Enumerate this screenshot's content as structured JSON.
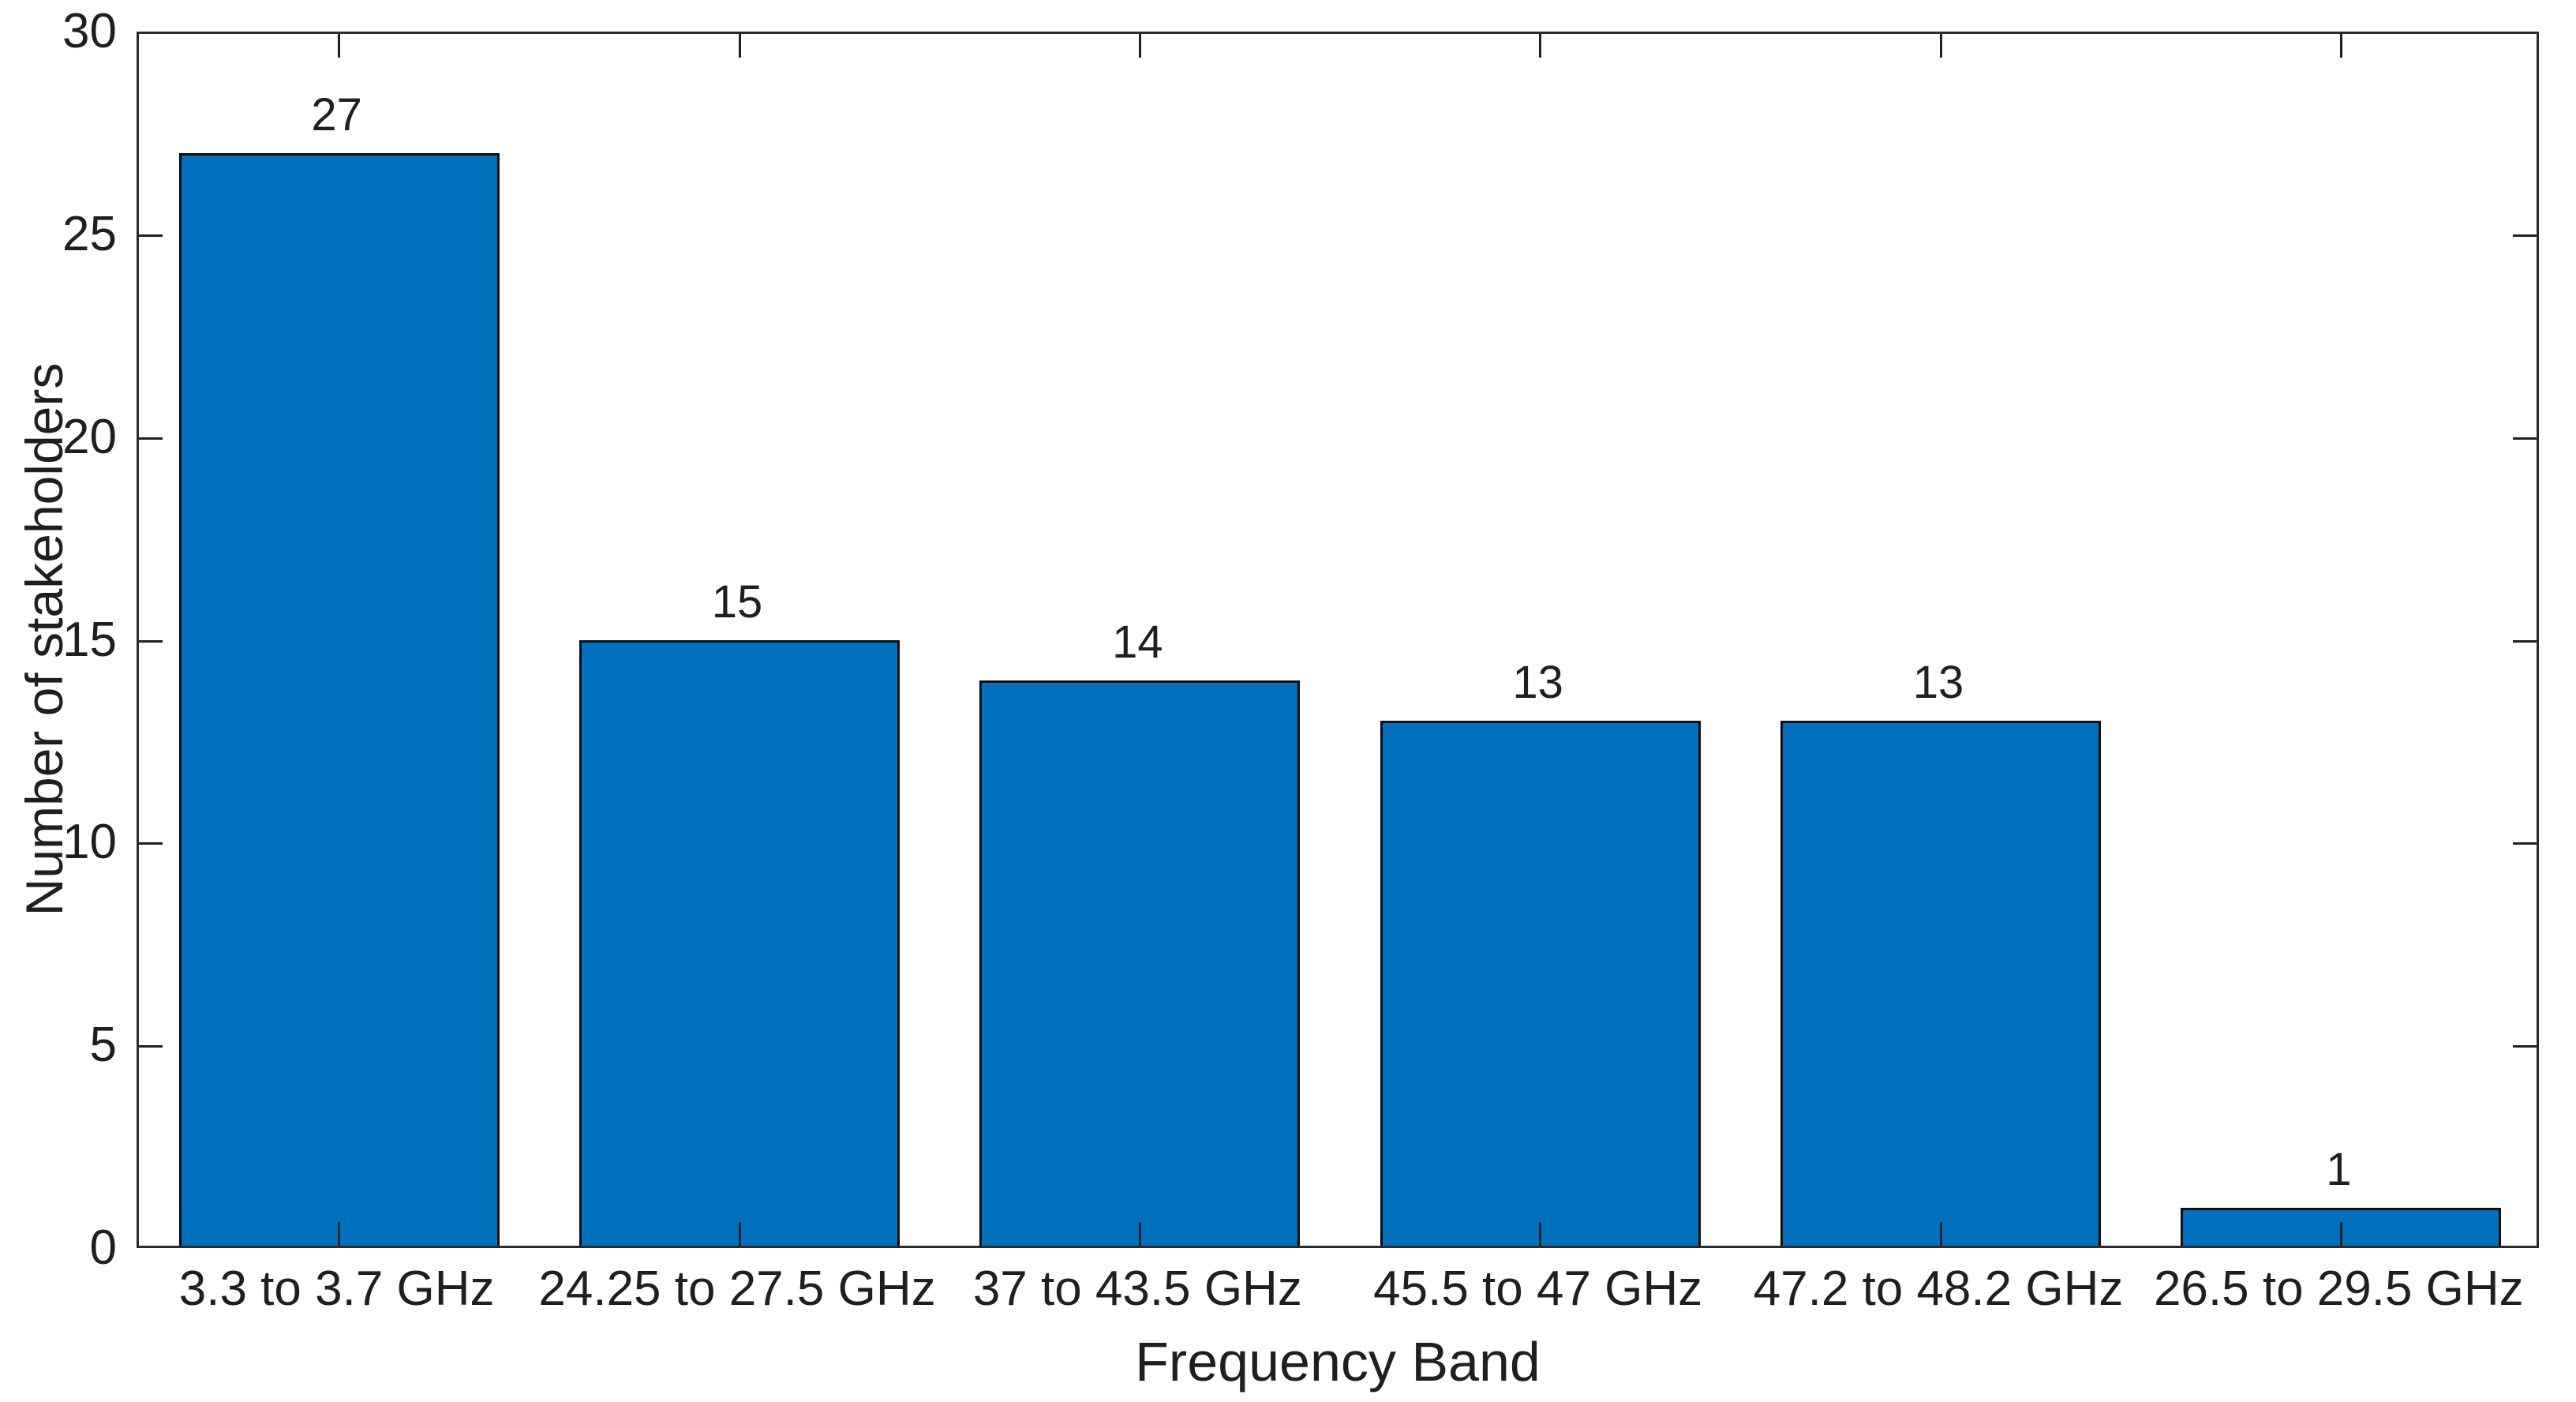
{
  "chart_data": {
    "type": "bar",
    "categories": [
      "3.3 to 3.7 GHz",
      "24.25 to 27.5 GHz",
      "37 to 43.5 GHz",
      "45.5 to 47 GHz",
      "47.2 to 48.2 GHz",
      "26.5 to 29.5 GHz"
    ],
    "values": [
      27,
      15,
      14,
      13,
      13,
      1
    ],
    "bar_labels": [
      "27",
      "15",
      "14",
      "13",
      "13",
      "1"
    ],
    "title": "",
    "xlabel": "Frequency Band",
    "ylabel": "Number of stakeholders",
    "ylim": [
      0,
      30
    ],
    "yticks": [
      0,
      5,
      10,
      15,
      20,
      25,
      30
    ],
    "grid": false,
    "legend_position": "none",
    "bar_width_fraction": 0.8,
    "colors": {
      "bar_fill": "#0072BD",
      "bar_edge": "#0d0d0d",
      "axis_box": "#2b2b2b",
      "tick_mark": "#1f1f1f",
      "text": "#1f1f1f",
      "background": "#ffffff"
    }
  }
}
